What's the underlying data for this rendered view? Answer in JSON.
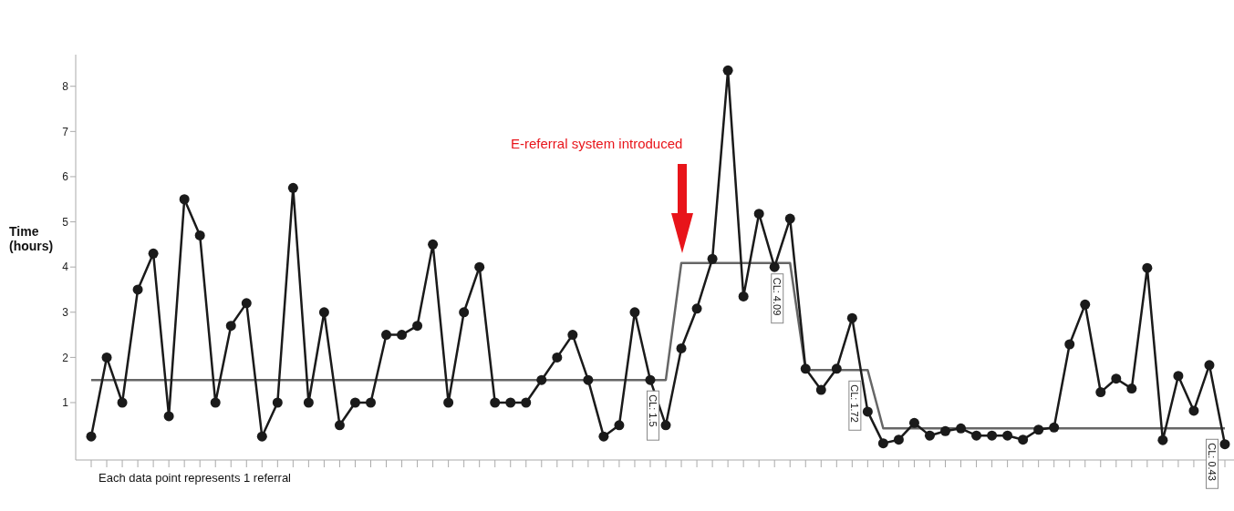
{
  "chart_data": {
    "type": "line",
    "ylabel": "Time (hours)",
    "categories": [
      null,
      null,
      null,
      null,
      null,
      null,
      null,
      null,
      null,
      null,
      null,
      null,
      null,
      null,
      null,
      null,
      null,
      null,
      null,
      null,
      null,
      null,
      null,
      null,
      null,
      null,
      null,
      null,
      null,
      null,
      null,
      null,
      null,
      null,
      null,
      null,
      null,
      null,
      null,
      null,
      null,
      null,
      null,
      null,
      null,
      null,
      null,
      null,
      null,
      null,
      null,
      null,
      null,
      null,
      null,
      null,
      null,
      null,
      null,
      null,
      null,
      null,
      null,
      null,
      null,
      null,
      null,
      null,
      null,
      null,
      null,
      null,
      null,
      null
    ],
    "series": [
      {
        "color": "#1a1a1a",
        "values": [
          0.25,
          2.0,
          1.0,
          3.5,
          4.3,
          0.7,
          5.5,
          4.7,
          1.0,
          2.7,
          3.2,
          0.25,
          1.0,
          5.75,
          1.0,
          3.0,
          0.5,
          1.0,
          1.0,
          2.5,
          2.5,
          2.7,
          4.5,
          1.0,
          3.0,
          4.0,
          1.0,
          1.0,
          1.0,
          1.5,
          2.0,
          2.5,
          1.5,
          0.25,
          0.5,
          3.0,
          1.5,
          0.5,
          2.2,
          3.08,
          4.18,
          8.35,
          3.35,
          5.18,
          4.0,
          5.07,
          1.75,
          1.28,
          1.75,
          2.87,
          0.8,
          0.1,
          0.18,
          0.55,
          0.27,
          0.37,
          0.43,
          0.27,
          0.27,
          0.27,
          0.18,
          0.4,
          0.45,
          2.29,
          3.17,
          1.23,
          1.53,
          1.31,
          3.98,
          0.17,
          1.59,
          0.82,
          1.83,
          0.08
        ]
      },
      {
        "color": "#666666",
        "marker": "none",
        "values": [
          1.5,
          1.5,
          1.5,
          1.5,
          1.5,
          1.5,
          1.5,
          1.5,
          1.5,
          1.5,
          1.5,
          1.5,
          1.5,
          1.5,
          1.5,
          1.5,
          1.5,
          1.5,
          1.5,
          1.5,
          1.5,
          1.5,
          1.5,
          1.5,
          1.5,
          1.5,
          1.5,
          1.5,
          1.5,
          1.5,
          1.5,
          1.5,
          1.5,
          1.5,
          1.5,
          1.5,
          1.5,
          1.5,
          4.09,
          4.09,
          4.09,
          4.09,
          4.09,
          4.09,
          4.09,
          4.09,
          1.72,
          1.72,
          1.72,
          1.72,
          1.72,
          0.43,
          0.43,
          0.43,
          0.43,
          0.43,
          0.43,
          0.43,
          0.43,
          0.43,
          0.43,
          0.43,
          0.43,
          0.43,
          0.43,
          0.43,
          0.43,
          0.43,
          0.43,
          0.43,
          0.43,
          0.43,
          0.43,
          0.43
        ]
      }
    ],
    "ylim": [
      -0.27,
      8.7
    ],
    "yticks": [
      1,
      2,
      3,
      4,
      5,
      6,
      7,
      8
    ],
    "grid": false,
    "legend": false,
    "marker": "circle",
    "line_style": "solid",
    "annotations": [
      "E-referral system introduced",
      "Each data point represents 1 referral",
      {
        "text": "CL: 1.5",
        "y": 1.5
      },
      {
        "text": "CL: 4.09",
        "y": 4.09
      },
      {
        "text": "CL: 1.72",
        "y": 1.72
      },
      {
        "text": "CL: 0.43",
        "y": 0.43
      }
    ]
  }
}
